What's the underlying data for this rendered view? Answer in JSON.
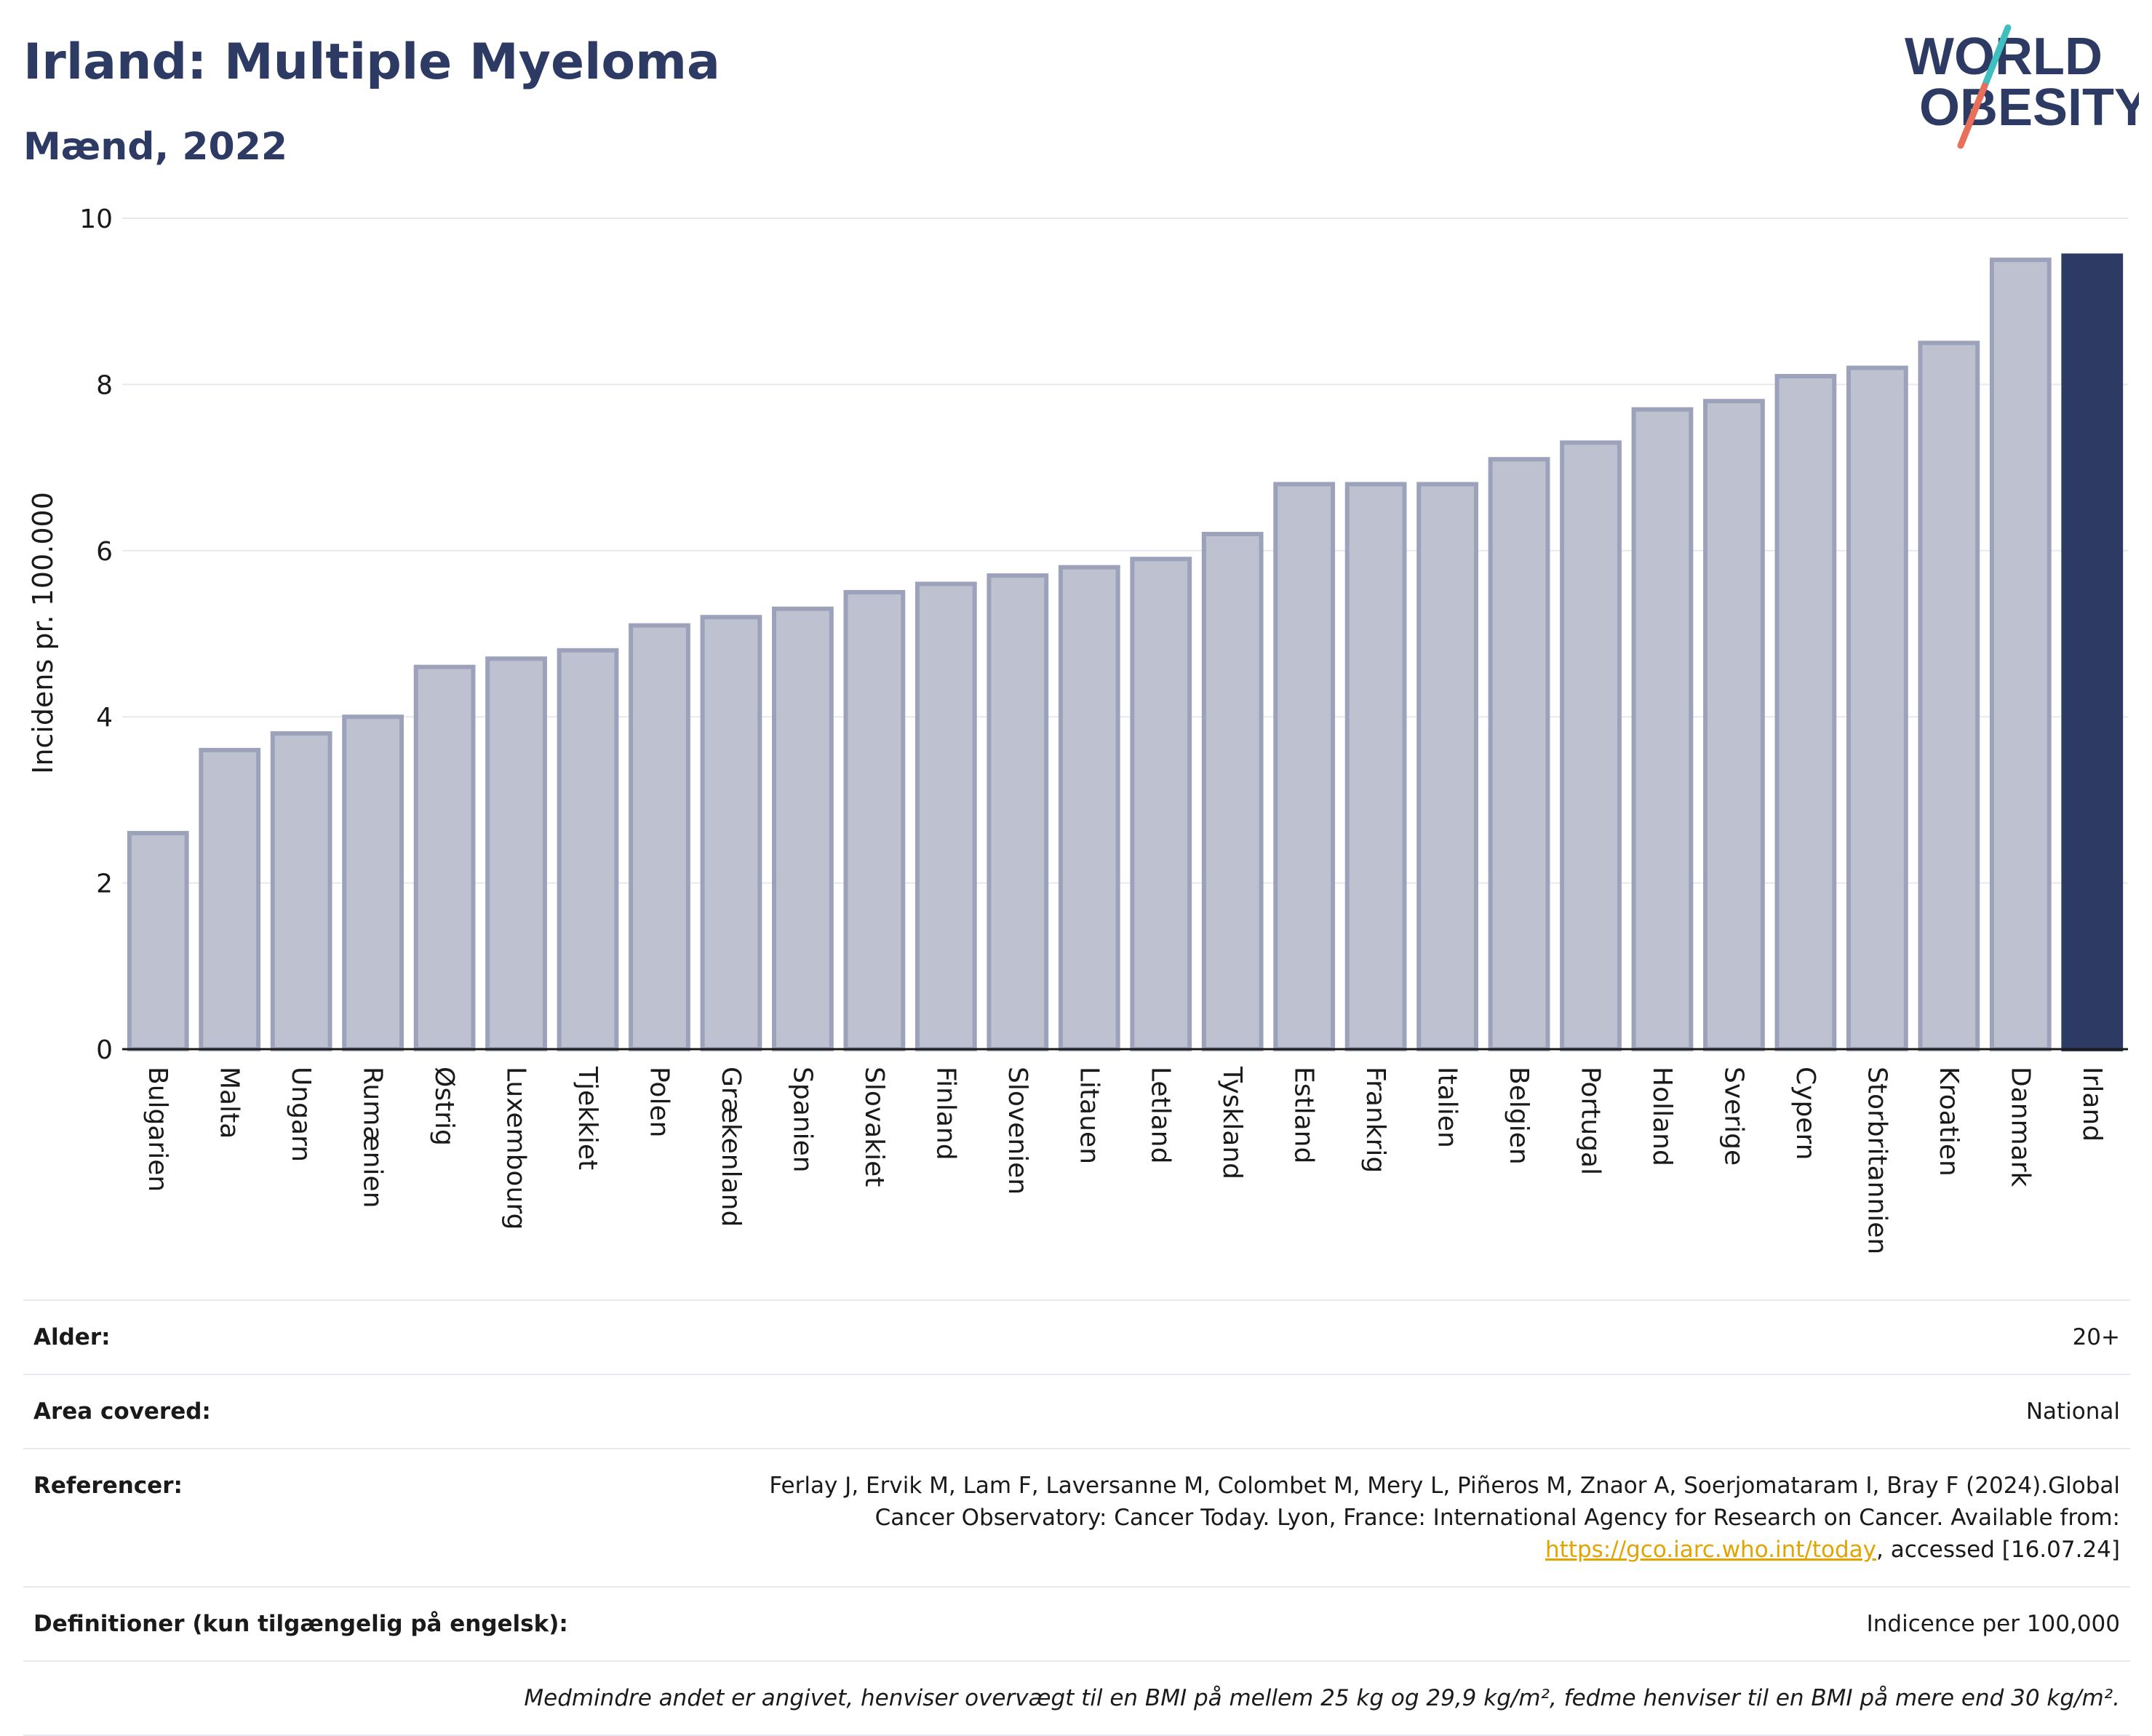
{
  "header": {
    "title": "Irland: Multiple Myeloma",
    "subtitle": "Mænd, 2022"
  },
  "logo": {
    "line1": "WORLD",
    "line2": "OBESITY",
    "slash_colors": [
      "#3fbfbf",
      "#e8705a"
    ]
  },
  "colors": {
    "bar": "#bec1d0",
    "bar_border": "#9da2bb",
    "highlight": "#2d3a63",
    "grid": "#e6e9f0",
    "link": "#e1a400"
  },
  "chart_data": {
    "type": "bar",
    "ylabel": "Incidens pr. 100.000",
    "ylim": [
      0,
      10
    ],
    "yticks": [
      "0",
      "2",
      "4",
      "6",
      "8",
      "10"
    ],
    "highlight": "Irland",
    "categories": [
      "Bulgarien",
      "Malta",
      "Ungarn",
      "Rumænien",
      "Østrig",
      "Luxembourg",
      "Tjekkiet",
      "Polen",
      "Grækenland",
      "Spanien",
      "Slovakiet",
      "Finland",
      "Slovenien",
      "Litauen",
      "Letland",
      "Tyskland",
      "Estland",
      "Frankrig",
      "Italien",
      "Belgien",
      "Portugal",
      "Holland",
      "Sverige",
      "Cypern",
      "Storbritannien",
      "Kroatien",
      "Danmark",
      "Irland"
    ],
    "values": [
      2.6,
      3.6,
      3.8,
      4.0,
      4.6,
      4.7,
      4.8,
      5.1,
      5.2,
      5.3,
      5.5,
      5.6,
      5.7,
      5.8,
      5.9,
      6.2,
      6.8,
      6.8,
      6.8,
      7.1,
      7.3,
      7.7,
      7.8,
      8.1,
      8.2,
      8.5,
      9.5,
      9.55
    ]
  },
  "meta": {
    "age_label": "Alder:",
    "age_value": "20+",
    "area_label": "Area covered:",
    "area_value": "National",
    "ref_label": "Referencer:",
    "ref_text_1": "Ferlay J, Ervik M, Lam F, Laversanne M, Colombet M, Mery L, Piñeros M, Znaor A, Soerjomataram I, Bray F (2024).Global Cancer Observatory: Cancer Today. Lyon, France: International Agency for Research on Cancer. Available from: ",
    "ref_link": "https://gco.iarc.who.int/today",
    "ref_text_2": ", accessed [16.07.24]",
    "def_label": "Definitioner (kun tilgængelig på engelsk):",
    "def_value": "Indicence per 100,000",
    "note": "Medmindre andet er angivet, henviser overvægt til en BMI på mellem 25 kg og 29,9 kg/m², fedme henviser til en BMI på mere end 30 kg/m²."
  }
}
